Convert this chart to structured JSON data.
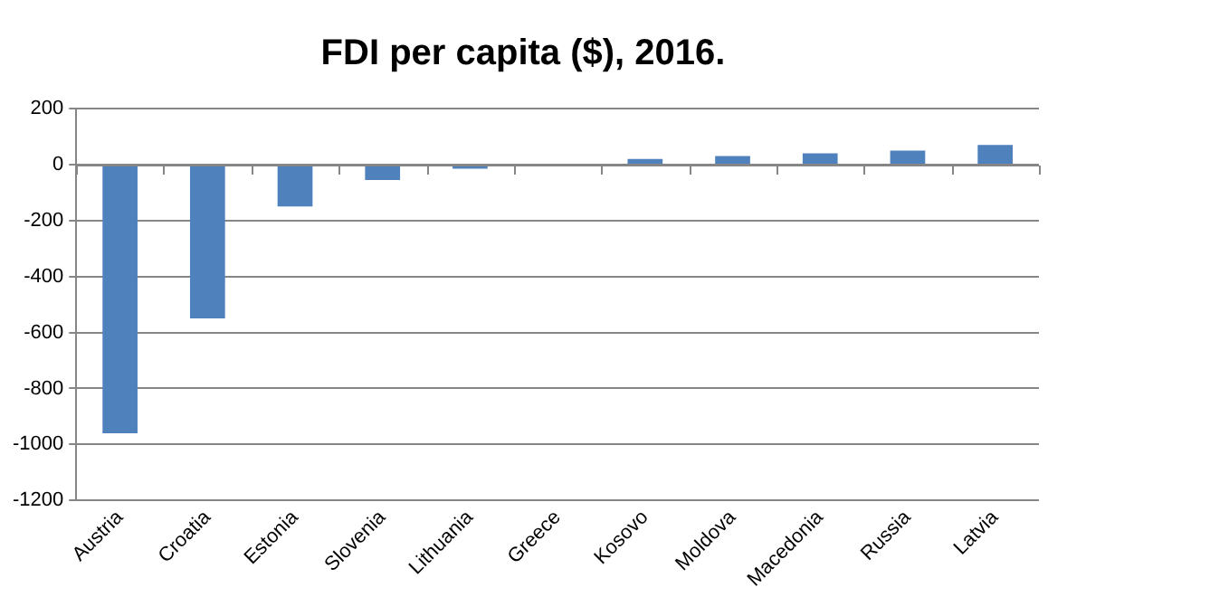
{
  "chart_data": {
    "type": "bar",
    "title": "FDI per capita ($), 2016.",
    "categories": [
      "Austria",
      "Croatia",
      "Estonia",
      "Slovenia",
      "Lithuania",
      "Greece",
      "Kosovo",
      "Moldova",
      "Macedonia",
      "Russia",
      "Latvia"
    ],
    "values": [
      -960,
      -550,
      -150,
      -55,
      -15,
      0,
      20,
      30,
      40,
      50,
      70
    ],
    "color": "#4f81bd",
    "ylim": [
      -1200,
      200
    ],
    "yticks": [
      -1200,
      -1000,
      -800,
      -600,
      -400,
      -200,
      0,
      200
    ],
    "grid": "y",
    "legend": false
  }
}
